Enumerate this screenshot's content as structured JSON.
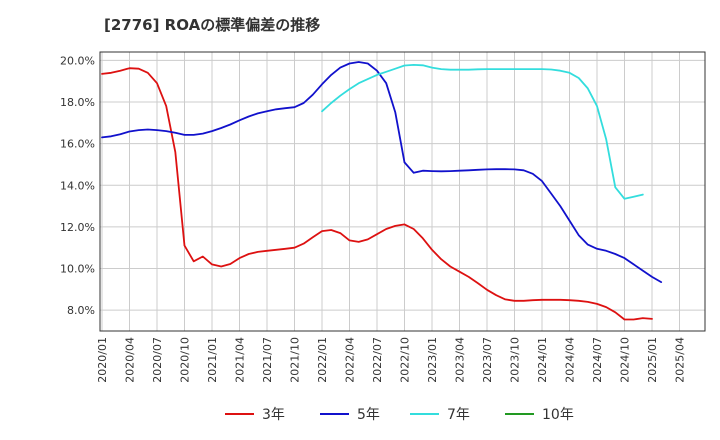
{
  "chart_data": {
    "type": "line",
    "title": "[2776]  ROAの標準偏差の推移",
    "xlabel": "",
    "ylabel": "",
    "ylim": [
      7.0,
      20.4
    ],
    "grid": true,
    "legend_position": "bottom",
    "y_ticks": [
      {
        "value": 8,
        "label": "8.0%"
      },
      {
        "value": 10,
        "label": "10.0%"
      },
      {
        "value": 12,
        "label": "12.0%"
      },
      {
        "value": 14,
        "label": "14.0%"
      },
      {
        "value": 16,
        "label": "16.0%"
      },
      {
        "value": 18,
        "label": "18.0%"
      },
      {
        "value": 20,
        "label": "20.0%"
      }
    ],
    "x_ticks": [
      "2020/01",
      "2020/04",
      "2020/07",
      "2020/10",
      "2021/01",
      "2021/04",
      "2021/07",
      "2021/10",
      "2022/01",
      "2022/04",
      "2022/07",
      "2022/10",
      "2023/01",
      "2023/04",
      "2023/07",
      "2023/10",
      "2024/01",
      "2024/04",
      "2024/07",
      "2024/10",
      "2025/01",
      "2025/04"
    ],
    "series": [
      {
        "name": "3年",
        "color": "#dd1111",
        "start": "2020/01",
        "values": [
          19.35,
          19.4,
          19.5,
          19.62,
          19.6,
          19.4,
          18.9,
          17.8,
          15.6,
          11.1,
          10.35,
          10.58,
          10.2,
          10.1,
          10.22,
          10.5,
          10.7,
          10.8,
          10.85,
          10.9,
          10.95,
          11.0,
          11.2,
          11.5,
          11.8,
          11.85,
          11.7,
          11.35,
          11.28,
          11.4,
          11.65,
          11.9,
          12.05,
          12.12,
          11.9,
          11.45,
          10.9,
          10.45,
          10.1,
          9.85,
          9.6,
          9.3,
          8.98,
          8.72,
          8.52,
          8.45,
          8.45,
          8.48,
          8.5,
          8.5,
          8.5,
          8.48,
          8.45,
          8.4,
          8.3,
          8.15,
          7.9,
          7.55,
          7.55,
          7.62,
          7.58
        ]
      },
      {
        "name": "5年",
        "color": "#1111cc",
        "start": "2020/01",
        "values": [
          16.3,
          16.35,
          16.45,
          16.58,
          16.65,
          16.68,
          16.65,
          16.6,
          16.52,
          16.42,
          16.42,
          16.48,
          16.6,
          16.75,
          16.92,
          17.12,
          17.3,
          17.45,
          17.55,
          17.65,
          17.7,
          17.75,
          17.95,
          18.35,
          18.85,
          19.3,
          19.65,
          19.85,
          19.92,
          19.85,
          19.5,
          18.9,
          17.5,
          15.1,
          14.6,
          14.7,
          14.68,
          14.67,
          14.68,
          14.7,
          14.72,
          14.74,
          14.76,
          14.77,
          14.77,
          14.76,
          14.72,
          14.55,
          14.2,
          13.6,
          13.0,
          12.3,
          11.6,
          11.15,
          10.95,
          10.85,
          10.7,
          10.5,
          10.2,
          9.9,
          9.6,
          9.35
        ]
      },
      {
        "name": "7年",
        "color": "#33dddd",
        "start": "2022/01",
        "values": [
          17.55,
          17.95,
          18.3,
          18.62,
          18.9,
          19.1,
          19.3,
          19.45,
          19.6,
          19.75,
          19.78,
          19.76,
          19.65,
          19.58,
          19.55,
          19.55,
          19.55,
          19.57,
          19.58,
          19.58,
          19.58,
          19.58,
          19.58,
          19.58,
          19.58,
          19.56,
          19.5,
          19.4,
          19.15,
          18.65,
          17.8,
          16.2,
          13.9,
          13.35,
          13.45,
          13.55
        ]
      },
      {
        "name": "10年",
        "color": "#229922",
        "start": "2020/01",
        "values": []
      }
    ]
  }
}
